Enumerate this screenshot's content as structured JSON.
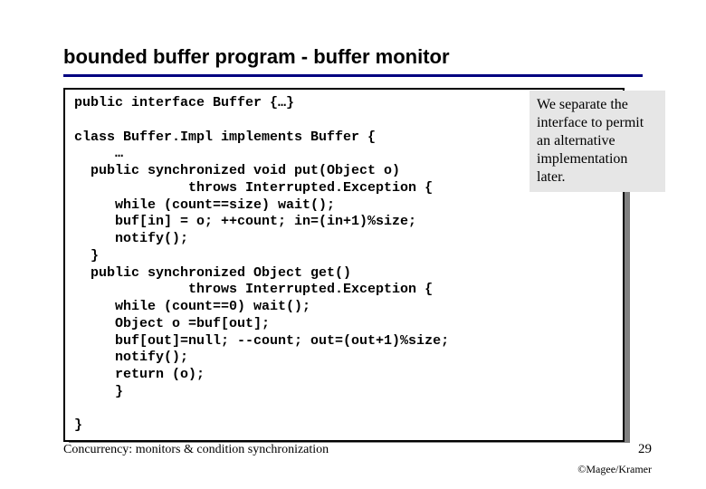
{
  "title": "bounded buffer program - buffer monitor",
  "code": "public interface Buffer {…}\n\nclass Buffer.Impl implements Buffer {\n     …\n  public synchronized void put(Object o)\n              throws Interrupted.Exception {\n     while (count==size) wait();\n     buf[in] = o; ++count; in=(in+1)%size;\n     notify();\n  }\n  public synchronized Object get()\n              throws Interrupted.Exception {\n     while (count==0) wait();\n     Object o =buf[out];\n     buf[out]=null; --count; out=(out+1)%size;\n     notify();\n     return (o);\n     }\n\n}",
  "note": "We separate the interface to permit an alternative implementation later.",
  "footer_left": "Concurrency: monitors & condition synchronization",
  "page_number": "29",
  "credit": "©Magee/Kramer",
  "colors": {
    "rule": "#000080",
    "shadow": "#808080",
    "note_bg": "#e6e6e6",
    "background": "#ffffff",
    "text": "#000000"
  },
  "typography": {
    "title_fontsize": 22,
    "code_fontsize": 15,
    "note_fontsize": 16,
    "footer_fontsize": 14,
    "credit_fontsize": 12,
    "code_font": "Courier New",
    "body_font": "Arial",
    "serif_font": "Times New Roman"
  },
  "layout": {
    "slide_width": 780,
    "slide_height": 540,
    "code_box_width": 620,
    "note_box_width": 150
  }
}
